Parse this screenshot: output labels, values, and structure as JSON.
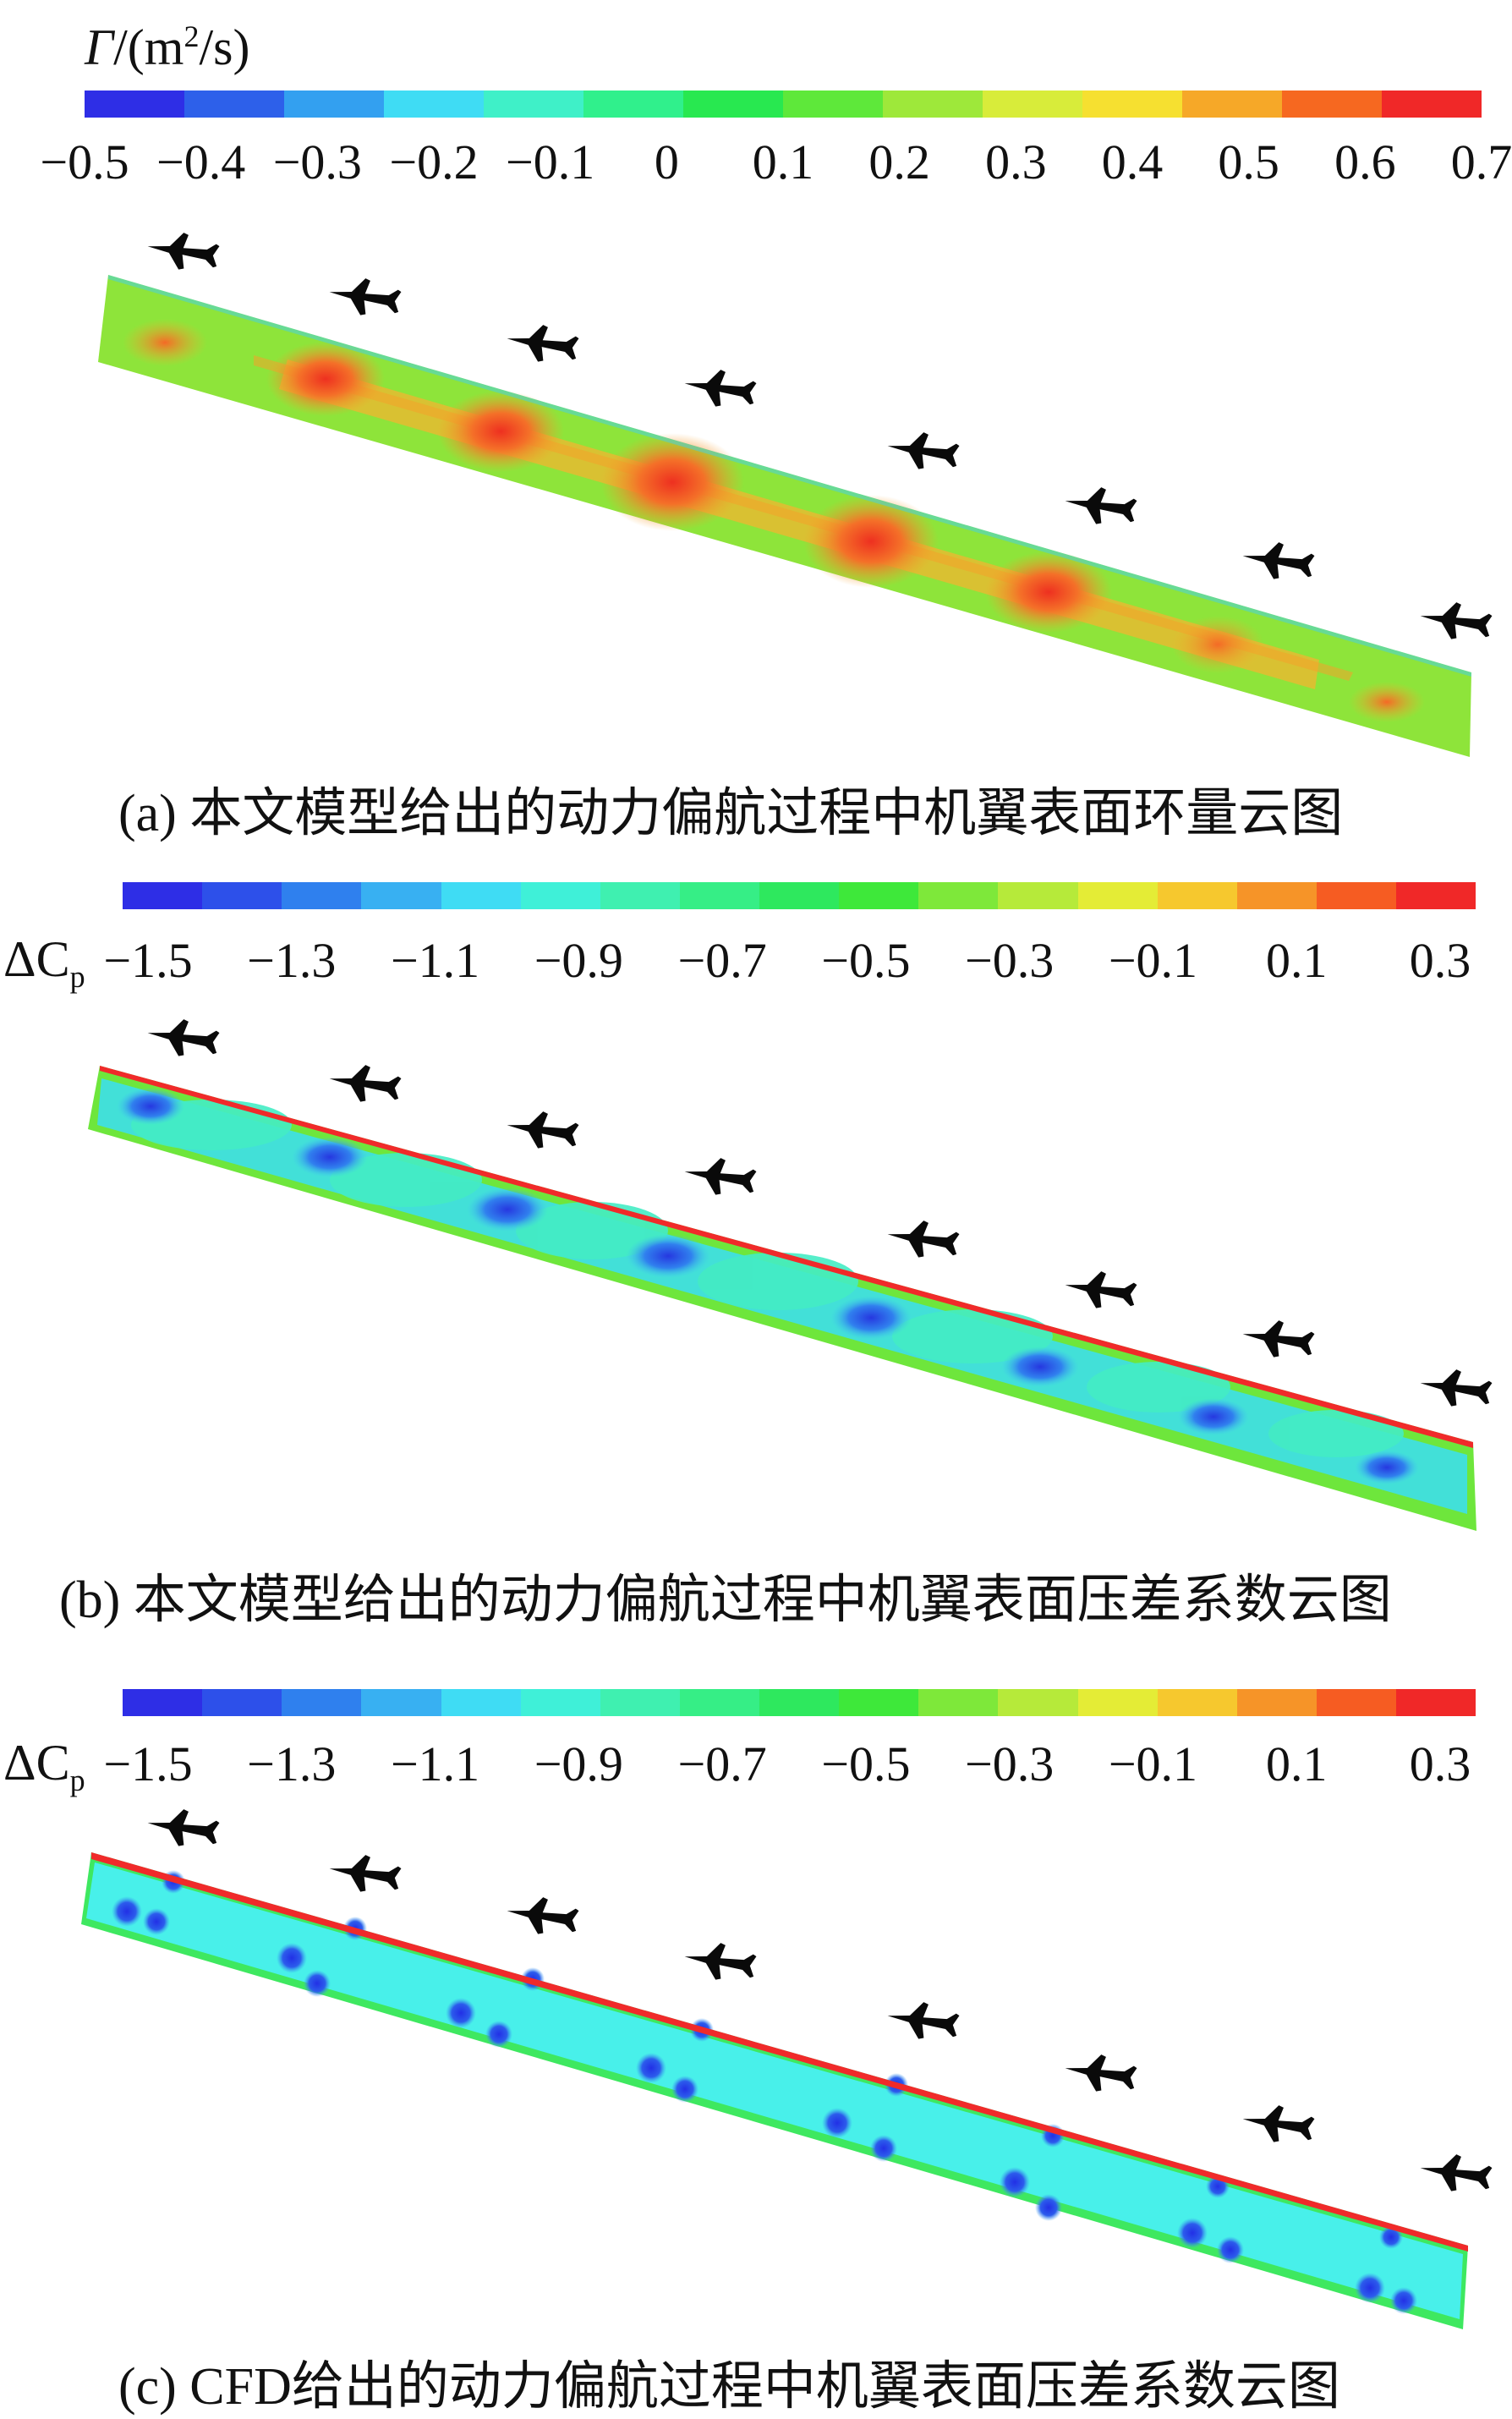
{
  "panels": [
    {
      "id": "a",
      "colorbar": {
        "title_symbol": "Γ",
        "title_unit_prefix": "/(m",
        "title_unit_sup": "2",
        "title_unit_suffix": "/s)",
        "tick_labels": [
          "−0.5",
          "−0.4",
          "−0.3",
          "−0.2",
          "−0.1",
          "0",
          "0.1",
          "0.2",
          "0.3",
          "0.4",
          "0.5",
          "0.6",
          "0.7"
        ],
        "colors": [
          "#2e2ee6",
          "#2d60ea",
          "#33a0f0",
          "#3fdcf4",
          "#3ff0c8",
          "#30f08c",
          "#28e850",
          "#5ee83a",
          "#9ee83a",
          "#d8ec3a",
          "#f6e030",
          "#f6a828",
          "#f66820",
          "#f02828"
        ]
      },
      "caption": "(a) 本文模型给出的动力偏航过程中机翼表面环量云图"
    },
    {
      "id": "b",
      "colorbar": {
        "title_symbol": "ΔC",
        "title_sub": "p",
        "tick_labels": [
          "−1.5",
          "−1.3",
          "−1.1",
          "−0.9",
          "−0.7",
          "−0.5",
          "−0.3",
          "−0.1",
          "0.1",
          "0.3"
        ],
        "colors": [
          "#2e2ee6",
          "#2d50ea",
          "#2f80ee",
          "#38b0f2",
          "#3fdcf4",
          "#3ff0d8",
          "#3ff0b0",
          "#36ee86",
          "#2ee85e",
          "#3ee83a",
          "#7ee83a",
          "#b6ea3a",
          "#e4ec36",
          "#f6c82e",
          "#f69428",
          "#f65c22",
          "#f02828"
        ]
      },
      "caption": "(b) 本文模型给出的动力偏航过程中机翼表面压差系数云图"
    },
    {
      "id": "c",
      "colorbar": {
        "title_symbol": "ΔC",
        "title_sub": "p",
        "tick_labels": [
          "−1.5",
          "−1.3",
          "−1.1",
          "−0.9",
          "−0.7",
          "−0.5",
          "−0.3",
          "−0.1",
          "0.1",
          "0.3"
        ],
        "colors": [
          "#2e2ee6",
          "#2d50ea",
          "#2f80ee",
          "#38b0f2",
          "#3fdcf4",
          "#3ff0d8",
          "#3ff0b0",
          "#36ee86",
          "#2ee85e",
          "#3ee83a",
          "#7ee83a",
          "#b6ea3a",
          "#e4ec36",
          "#f6c82e",
          "#f69428",
          "#f65c22",
          "#f02828"
        ]
      },
      "caption": "(c) CFD给出的动力偏航过程中机翼表面压差系数云图"
    }
  ],
  "colors": {
    "field_a_base": "#8ee43a",
    "field_a_core": "#f4a22a",
    "field_a_peak": "#ee3a20",
    "field_b_base": "#3ef0c0",
    "field_b_edge": "#6ee63c",
    "field_b_low": "#2a40e0",
    "field_c_base": "#46f0e4",
    "field_c_edge": "#3ee860",
    "field_c_low": "#2a3ae8",
    "leading_edge": "#f02a2a",
    "aircraft": "#0a0a0a"
  },
  "icons": {
    "aircraft": "aircraft-silhouette-icon"
  }
}
